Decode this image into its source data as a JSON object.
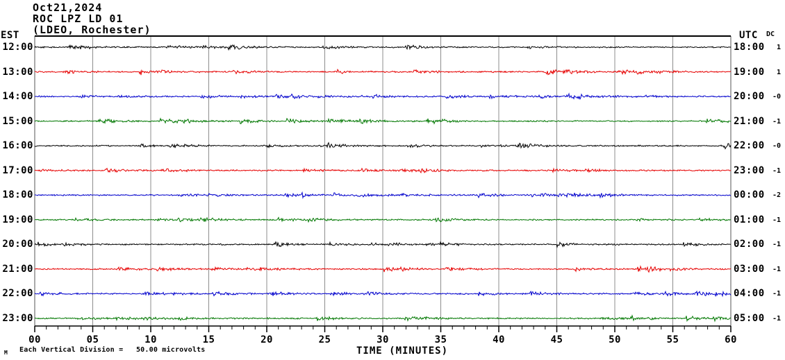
{
  "title": {
    "line1": "Oct21,2024",
    "line2": "ROC LPZ LD 01",
    "line3": "(LDEO, Rochester)"
  },
  "axes": {
    "left_header": "EST",
    "right_header": "UTC",
    "dc_header": "DC",
    "x_label": "TIME (MINUTES)",
    "x_ticks": [
      "00",
      "05",
      "10",
      "15",
      "20",
      "25",
      "30",
      "35",
      "40",
      "45",
      "50",
      "55",
      "60"
    ]
  },
  "footer": {
    "division_note": "Each Vertical Division =   50.00 microvolts",
    "mark": "M"
  },
  "colors": {
    "black": "#000000",
    "red": "#e60000",
    "blue": "#0000cc",
    "green": "#007700",
    "grid": "#8c8c8c",
    "border": "#000000"
  },
  "chart_data": {
    "type": "line",
    "subtype": "helicorder-seismogram",
    "station": "ROC LPZ LD 01",
    "network_note": "(LDEO, Rochester)",
    "date": "Oct21,2024",
    "x_range_minutes": [
      0,
      60
    ],
    "x_tick_interval_minutes": 5,
    "x_minor_tick_minutes": 1,
    "xlabel": "TIME (MINUTES)",
    "vertical_division": "50.00 microvolts",
    "rows": [
      {
        "est": "12:00",
        "utc": "18:00",
        "dc": "1",
        "color": "black"
      },
      {
        "est": "13:00",
        "utc": "19:00",
        "dc": "1",
        "color": "red"
      },
      {
        "est": "14:00",
        "utc": "20:00",
        "dc": "-0",
        "color": "blue"
      },
      {
        "est": "15:00",
        "utc": "21:00",
        "dc": "-1",
        "color": "green"
      },
      {
        "est": "16:00",
        "utc": "22:00",
        "dc": "-0",
        "color": "black"
      },
      {
        "est": "17:00",
        "utc": "23:00",
        "dc": "-1",
        "color": "red"
      },
      {
        "est": "18:00",
        "utc": "00:00",
        "dc": "-2",
        "color": "blue"
      },
      {
        "est": "19:00",
        "utc": "01:00",
        "dc": "-1",
        "color": "green"
      },
      {
        "est": "20:00",
        "utc": "02:00",
        "dc": "-1",
        "color": "black"
      },
      {
        "est": "21:00",
        "utc": "03:00",
        "dc": "-1",
        "color": "red"
      },
      {
        "est": "22:00",
        "utc": "04:00",
        "dc": "-1",
        "color": "blue"
      },
      {
        "est": "23:00",
        "utc": "05:00",
        "dc": "-1",
        "color": "green"
      }
    ],
    "trace_description": "Each row is one hour of continuous low-amplitude seismic background noise (microseism), no large events visible."
  }
}
